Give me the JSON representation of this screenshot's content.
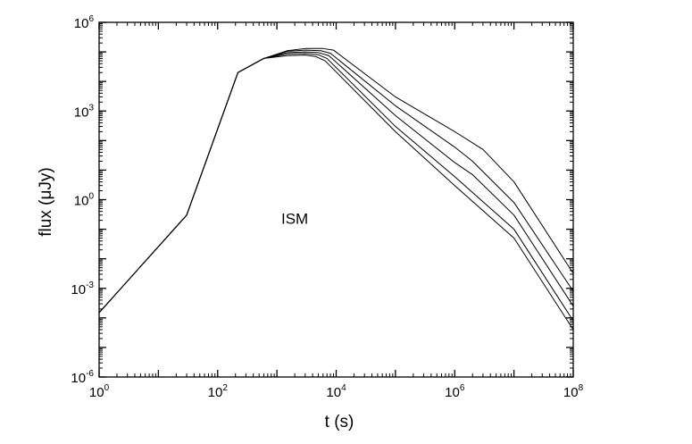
{
  "chart_data": {
    "type": "line",
    "title": "",
    "xlabel": "t (s)",
    "ylabel": "flux (μJy)",
    "xscale": "log",
    "yscale": "log",
    "xlim": [
      1,
      100000000
    ],
    "ylim": [
      1e-06,
      1000000
    ],
    "x_ticks": [
      {
        "value": 1,
        "base": "10",
        "exp": "0"
      },
      {
        "value": 100,
        "base": "10",
        "exp": "2"
      },
      {
        "value": 10000,
        "base": "10",
        "exp": "4"
      },
      {
        "value": 1000000,
        "base": "10",
        "exp": "6"
      },
      {
        "value": 100000000,
        "base": "10",
        "exp": "8"
      }
    ],
    "y_ticks": [
      {
        "value": 1e-06,
        "base": "10",
        "exp": "-6"
      },
      {
        "value": 0.001,
        "base": "10",
        "exp": "-3"
      },
      {
        "value": 1,
        "base": "10",
        "exp": "0"
      },
      {
        "value": 1000,
        "base": "10",
        "exp": "3"
      },
      {
        "value": 1000000,
        "base": "10",
        "exp": "6"
      }
    ],
    "grid": false,
    "legend": "none",
    "annotation": {
      "text": "ISM",
      "x": 2000,
      "y": 1
    },
    "color": "#000000",
    "series": [
      {
        "x": [
          1,
          30,
          220,
          600,
          1500,
          3000,
          6000,
          9000,
          100000,
          1000000,
          3000000,
          10000000,
          100000000
        ],
        "y": [
          0.00015,
          0.3,
          20000,
          60000,
          110000,
          130000,
          130000,
          115000,
          3000,
          200,
          50,
          4,
          0.0032
        ]
      },
      {
        "x": [
          1,
          30,
          220,
          600,
          1500,
          3000,
          5500,
          8000,
          100000,
          1000000,
          2000000,
          10000000,
          100000000
        ],
        "y": [
          0.00015,
          0.3,
          20000,
          60000,
          105000,
          115000,
          110000,
          90000,
          1500,
          60,
          20,
          0.8,
          0.0008
        ]
      },
      {
        "x": [
          1,
          30,
          220,
          600,
          1500,
          3000,
          5000,
          7500,
          100000,
          1000000,
          2000000,
          10000000,
          100000000
        ],
        "y": [
          0.00015,
          0.3,
          20000,
          60000,
          95000,
          100000,
          95000,
          75000,
          700,
          18,
          7,
          0.3,
          0.00025
        ]
      },
      {
        "x": [
          1,
          30,
          220,
          600,
          1500,
          3000,
          5000,
          7000,
          100000,
          1000000,
          10000000,
          100000000
        ],
        "y": [
          0.00015,
          0.3,
          20000,
          60000,
          85000,
          88000,
          80000,
          60000,
          300,
          6,
          0.1,
          8e-05
        ]
      },
      {
        "x": [
          1,
          30,
          220,
          600,
          1500,
          3000,
          4500,
          6500,
          100000,
          1000000,
          10000000,
          100000000
        ],
        "y": [
          0.00015,
          0.3,
          20000,
          60000,
          75000,
          78000,
          70000,
          50000,
          200,
          3,
          0.05,
          4e-05
        ]
      }
    ]
  }
}
